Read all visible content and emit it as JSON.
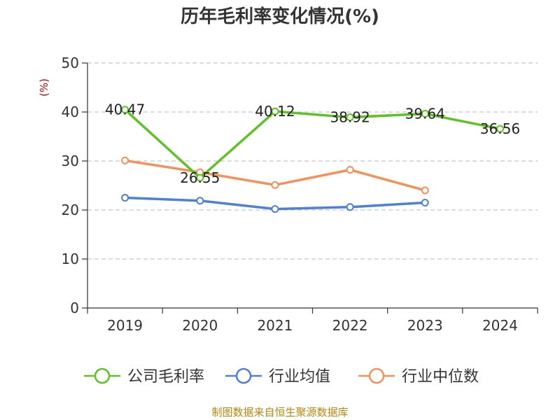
{
  "chart_data": {
    "type": "line",
    "title": "历年毛利率变化情况(%)",
    "ylabel": "(%)",
    "xlabel": "",
    "categories": [
      "2019",
      "2020",
      "2021",
      "2022",
      "2023",
      "2024"
    ],
    "ylim": [
      0,
      50
    ],
    "yticks": [
      0,
      10,
      20,
      30,
      40,
      50
    ],
    "grid": "horizontal dashed",
    "legend_position": "bottom",
    "series": [
      {
        "name": "公司毛利率",
        "color": "#5cc322",
        "values": [
          40.47,
          26.55,
          40.12,
          38.92,
          39.64,
          36.56
        ],
        "labels": [
          "40.47",
          "26.55",
          "40.12",
          "38.92",
          "39.64",
          "36.56"
        ]
      },
      {
        "name": "行业均值",
        "color": "#4e7fd9",
        "values": [
          22.5,
          21.9,
          20.2,
          20.6,
          21.5,
          null
        ]
      },
      {
        "name": "行业中位数",
        "color": "#f39159",
        "values": [
          30.1,
          27.7,
          25.1,
          28.2,
          24.0,
          null
        ]
      }
    ]
  },
  "source": "制图数据来自恒生聚源数据库"
}
